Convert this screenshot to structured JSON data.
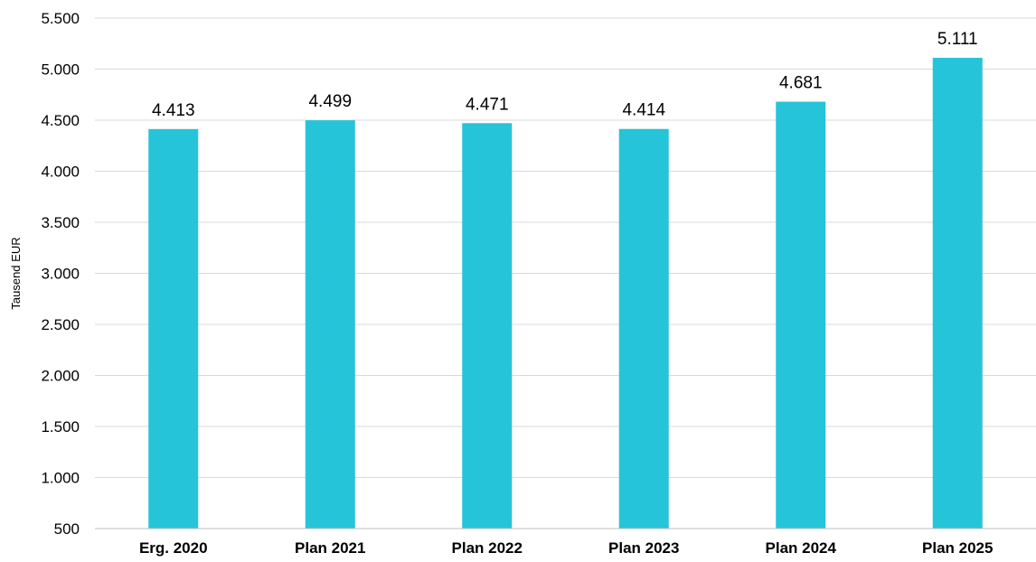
{
  "chart_data": {
    "type": "bar",
    "categories": [
      "Erg. 2020",
      "Plan 2021",
      "Plan 2022",
      "Plan 2023",
      "Plan 2024",
      "Plan 2025"
    ],
    "values": [
      4413,
      4499,
      4471,
      4414,
      4681,
      5111
    ],
    "value_labels": [
      "4.413",
      "4.499",
      "4.471",
      "4.414",
      "4.681",
      "5.111"
    ],
    "title": "",
    "xlabel": "",
    "ylabel": "Tausend EUR",
    "ylim": [
      500,
      5500
    ],
    "yticks": [
      500,
      1000,
      1500,
      2000,
      2500,
      3000,
      3500,
      4000,
      4500,
      5000,
      5500
    ],
    "ytick_labels": [
      "500",
      "1.000",
      "1.500",
      "2.000",
      "2.500",
      "3.000",
      "3.500",
      "4.000",
      "4.500",
      "5.000",
      "5.500"
    ],
    "grid": true,
    "legend": "none",
    "bar_color": "#26c4d8"
  }
}
